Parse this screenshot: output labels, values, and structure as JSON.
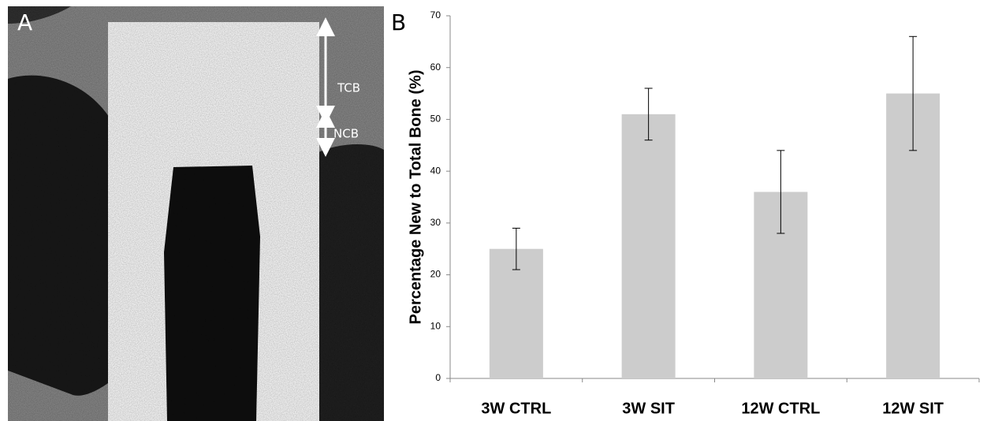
{
  "panel_a": {
    "label": "A",
    "annotations": [
      "TCB",
      "NCB"
    ]
  },
  "chart_data": {
    "type": "bar",
    "label": "B",
    "y_label": "Percentage New to Total Bone (%)",
    "categories": [
      "3W CTRL",
      "3W SIT",
      "12W CTRL",
      "12W SIT"
    ],
    "values": [
      25,
      51,
      36,
      55
    ],
    "errors": [
      4,
      5,
      8,
      11
    ],
    "color": "#cccccc",
    "ylim": [
      0,
      70
    ],
    "yticks": [
      0,
      10,
      20,
      30,
      40,
      50,
      60,
      70
    ]
  }
}
